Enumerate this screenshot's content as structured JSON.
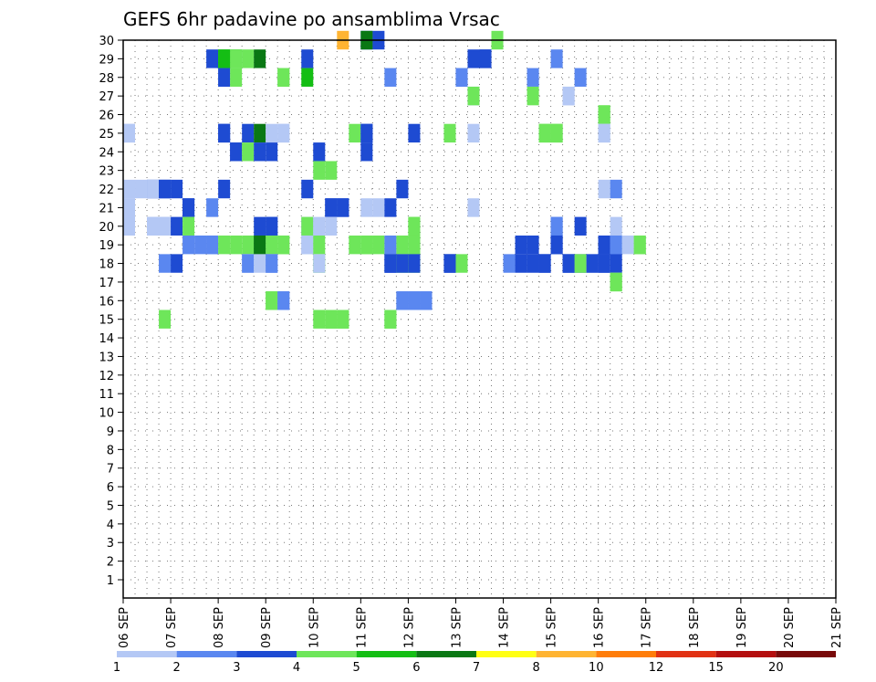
{
  "chart_data": {
    "type": "heatmap",
    "title": "GEFS 6hr padavine po ansamblima Vrsac",
    "x_ticks": [
      "06 SEP",
      "07 SEP",
      "08 SEP",
      "09 SEP",
      "10 SEP",
      "11 SEP",
      "12 SEP",
      "13 SEP",
      "14 SEP",
      "15 SEP",
      "16 SEP",
      "17 SEP",
      "18 SEP",
      "19 SEP",
      "20 SEP",
      "21 SEP"
    ],
    "y_ticks": [
      "1",
      "2",
      "3",
      "4",
      "5",
      "6",
      "7",
      "8",
      "9",
      "10",
      "11",
      "12",
      "13",
      "14",
      "15",
      "16",
      "17",
      "18",
      "19",
      "20",
      "21",
      "22",
      "23",
      "24",
      "25",
      "26",
      "27",
      "28",
      "29",
      "30"
    ],
    "y_range": [
      0,
      30
    ],
    "x_range": [
      "06 SEP",
      "21 SEP"
    ],
    "step_hours": 6,
    "grid": true,
    "legend": {
      "placement": "bottom",
      "labels": [
        "1",
        "2",
        "3",
        "4",
        "5",
        "6",
        "7",
        "8",
        "10",
        "12",
        "15",
        "20"
      ],
      "colors": [
        "#b4c8f5",
        "#5a87f0",
        "#1e4bd2",
        "#6ee65a",
        "#14be14",
        "#0a7814",
        "#ffff14",
        "#ffb432",
        "#ff7d0a",
        "#e13214",
        "#b40f0f",
        "#780a0a"
      ]
    },
    "cells": [
      [
        20,
        0,
        3
      ],
      [
        21,
        0,
        3
      ],
      [
        20,
        0,
        6
      ],
      [
        18,
        0,
        8
      ],
      [
        31,
        0,
        4
      ],
      [
        7,
        1,
        3
      ],
      [
        8,
        1,
        5
      ],
      [
        8,
        1,
        5
      ],
      [
        9,
        1,
        5
      ],
      [
        9,
        1,
        4
      ],
      [
        10,
        1,
        4
      ],
      [
        11,
        1,
        6
      ],
      [
        15,
        1,
        3
      ],
      [
        29,
        1,
        3
      ],
      [
        30,
        1,
        3
      ],
      [
        30,
        1,
        3
      ],
      [
        36,
        1,
        2
      ],
      [
        8,
        2,
        2
      ],
      [
        8,
        2,
        3
      ],
      [
        9,
        2,
        4
      ],
      [
        13,
        2,
        4
      ],
      [
        13,
        2,
        4
      ],
      [
        15,
        2,
        5
      ],
      [
        22,
        2,
        2
      ],
      [
        28,
        2,
        2
      ],
      [
        28,
        2,
        2
      ],
      [
        34,
        2,
        2
      ],
      [
        38,
        2,
        2
      ],
      [
        29,
        3,
        1
      ],
      [
        29,
        3,
        1
      ],
      [
        29,
        3,
        4
      ],
      [
        34,
        3,
        4
      ],
      [
        37,
        3,
        1
      ],
      [
        37,
        3,
        1
      ],
      [
        40,
        4,
        4
      ],
      [
        40,
        4,
        4
      ],
      [
        0,
        5,
        1
      ],
      [
        0,
        5,
        1
      ],
      [
        8,
        5,
        3
      ],
      [
        8,
        5,
        3
      ],
      [
        10,
        5,
        3
      ],
      [
        11,
        5,
        6
      ],
      [
        12,
        5,
        1
      ],
      [
        13,
        5,
        1
      ],
      [
        13,
        5,
        1
      ],
      [
        19,
        5,
        4
      ],
      [
        20,
        5,
        3
      ],
      [
        20,
        5,
        3
      ],
      [
        24,
        5,
        3
      ],
      [
        27,
        5,
        4
      ],
      [
        29,
        5,
        1
      ],
      [
        35,
        5,
        4
      ],
      [
        35,
        5,
        4
      ],
      [
        36,
        5,
        4
      ],
      [
        36,
        5,
        4
      ],
      [
        40,
        5,
        1
      ],
      [
        40,
        5,
        1
      ],
      [
        9,
        6,
        3
      ],
      [
        9,
        6,
        3
      ],
      [
        10,
        6,
        4
      ],
      [
        11,
        6,
        3
      ],
      [
        12,
        6,
        3
      ],
      [
        16,
        6,
        3
      ],
      [
        20,
        6,
        3
      ],
      [
        16,
        7,
        4
      ],
      [
        17,
        7,
        4
      ],
      [
        0,
        8,
        1
      ],
      [
        1,
        8,
        1
      ],
      [
        2,
        8,
        3
      ],
      [
        2,
        8,
        1
      ],
      [
        3,
        8,
        3
      ],
      [
        3,
        8,
        3
      ],
      [
        4,
        8,
        3
      ],
      [
        8,
        8,
        3
      ],
      [
        15,
        8,
        3
      ],
      [
        23,
        8,
        3
      ],
      [
        40,
        8,
        1
      ],
      [
        41,
        8,
        2
      ],
      [
        0,
        9,
        1
      ],
      [
        0,
        9,
        1
      ],
      [
        5,
        9,
        3
      ],
      [
        5,
        9,
        3
      ],
      [
        7,
        9,
        2
      ],
      [
        17,
        9,
        3
      ],
      [
        17,
        9,
        3
      ],
      [
        18,
        9,
        3
      ],
      [
        18,
        9,
        3
      ],
      [
        20,
        9,
        1
      ],
      [
        21,
        9,
        1
      ],
      [
        22,
        9,
        3
      ],
      [
        29,
        9,
        1
      ],
      [
        0,
        10,
        1
      ],
      [
        0,
        10,
        1
      ],
      [
        2,
        10,
        1
      ],
      [
        2,
        10,
        1
      ],
      [
        3,
        10,
        1
      ],
      [
        3,
        10,
        1
      ],
      [
        4,
        10,
        3
      ],
      [
        5,
        10,
        4
      ],
      [
        11,
        10,
        3
      ],
      [
        12,
        10,
        3
      ],
      [
        12,
        10,
        3
      ],
      [
        15,
        10,
        1
      ],
      [
        15,
        10,
        1
      ],
      [
        15,
        10,
        4
      ],
      [
        16,
        10,
        1
      ],
      [
        17,
        10,
        1
      ],
      [
        24,
        10,
        4
      ],
      [
        24,
        10,
        4
      ],
      [
        36,
        10,
        2
      ],
      [
        36,
        10,
        2
      ],
      [
        38,
        10,
        3
      ],
      [
        41,
        10,
        1
      ],
      [
        5,
        11,
        2
      ],
      [
        6,
        11,
        2
      ],
      [
        7,
        11,
        2
      ],
      [
        7,
        11,
        2
      ],
      [
        8,
        11,
        4
      ],
      [
        9,
        11,
        4
      ],
      [
        10,
        11,
        4
      ],
      [
        11,
        11,
        6
      ],
      [
        11,
        11,
        6
      ],
      [
        12,
        11,
        4
      ],
      [
        13,
        11,
        4
      ],
      [
        13,
        11,
        4
      ],
      [
        15,
        11,
        1
      ],
      [
        15,
        11,
        1
      ],
      [
        16,
        11,
        4
      ],
      [
        19,
        11,
        4
      ],
      [
        20,
        11,
        4
      ],
      [
        20,
        11,
        4
      ],
      [
        21,
        11,
        4
      ],
      [
        22,
        11,
        2
      ],
      [
        23,
        11,
        4
      ],
      [
        24,
        11,
        4
      ],
      [
        24,
        11,
        4
      ],
      [
        33,
        11,
        3
      ],
      [
        34,
        11,
        3
      ],
      [
        36,
        11,
        3
      ],
      [
        36,
        11,
        3
      ],
      [
        40,
        11,
        3
      ],
      [
        40,
        11,
        3
      ],
      [
        41,
        11,
        2
      ],
      [
        41,
        11,
        2
      ],
      [
        42,
        11,
        1
      ],
      [
        43,
        11,
        4
      ],
      [
        43,
        11,
        4
      ],
      [
        3,
        12,
        2
      ],
      [
        4,
        12,
        3
      ],
      [
        10,
        12,
        1
      ],
      [
        10,
        12,
        2
      ],
      [
        11,
        12,
        1
      ],
      [
        12,
        12,
        2
      ],
      [
        12,
        12,
        2
      ],
      [
        16,
        12,
        4
      ],
      [
        16,
        12,
        1
      ],
      [
        22,
        12,
        1
      ],
      [
        22,
        12,
        3
      ],
      [
        22,
        12,
        3
      ],
      [
        23,
        12,
        4
      ],
      [
        23,
        12,
        3
      ],
      [
        24,
        12,
        4
      ],
      [
        24,
        12,
        3
      ],
      [
        27,
        12,
        3
      ],
      [
        27,
        12,
        3
      ],
      [
        28,
        12,
        4
      ],
      [
        32,
        12,
        2
      ],
      [
        33,
        12,
        3
      ],
      [
        34,
        12,
        3
      ],
      [
        35,
        12,
        3
      ],
      [
        35,
        12,
        3
      ],
      [
        37,
        12,
        3
      ],
      [
        37,
        12,
        3
      ],
      [
        38,
        12,
        3
      ],
      [
        38,
        12,
        4
      ],
      [
        39,
        12,
        1
      ],
      [
        39,
        12,
        3
      ],
      [
        40,
        12,
        3
      ],
      [
        40,
        12,
        3
      ],
      [
        41,
        12,
        3
      ],
      [
        41,
        13,
        4
      ],
      [
        41,
        13,
        4
      ],
      [
        12,
        14,
        4
      ],
      [
        12,
        14,
        4
      ],
      [
        13,
        14,
        2
      ],
      [
        13,
        14,
        2
      ],
      [
        23,
        14,
        2
      ],
      [
        23,
        14,
        2
      ],
      [
        24,
        14,
        2
      ],
      [
        24,
        14,
        2
      ],
      [
        25,
        14,
        2
      ],
      [
        25,
        14,
        2
      ],
      [
        3,
        15,
        4
      ],
      [
        16,
        15,
        4
      ],
      [
        17,
        15,
        4
      ],
      [
        17,
        15,
        4
      ],
      [
        18,
        15,
        4
      ],
      [
        18,
        15,
        4
      ],
      [
        22,
        15,
        4
      ],
      [
        22,
        15,
        4
      ]
    ]
  },
  "note_keys": {}
}
